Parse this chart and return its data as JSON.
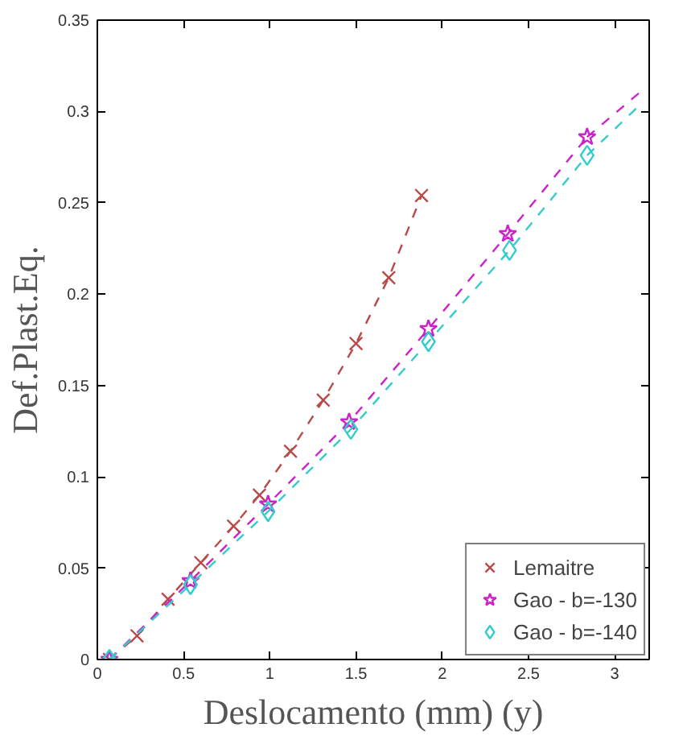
{
  "chart_data": {
    "type": "line",
    "xlabel": "Deslocamento (mm) (y)",
    "ylabel": "Def.Plast.Eq.",
    "xlim": [
      0,
      3.2
    ],
    "ylim": [
      0,
      0.35
    ],
    "xticks": [
      0,
      0.5,
      1,
      1.5,
      2,
      2.5,
      3
    ],
    "yticks": [
      0,
      0.05,
      0.1,
      0.15,
      0.2,
      0.25,
      0.3,
      0.35
    ],
    "grid": false,
    "legend": "bottom right",
    "line_style": "dashed",
    "series": [
      {
        "name": "Lemaitre",
        "color": "#b84a4a",
        "marker": "cross",
        "x": [
          0.07,
          0.23,
          0.41,
          0.6,
          0.79,
          0.94,
          1.12,
          1.31,
          1.5,
          1.69,
          1.88
        ],
        "values": [
          0,
          0.013,
          0.033,
          0.053,
          0.073,
          0.09,
          0.114,
          0.142,
          0.173,
          0.209,
          0.254
        ]
      },
      {
        "name": "Gao - b=-130",
        "color": "#cc22cc",
        "marker": "star",
        "x": [
          0.07,
          0.54,
          0.99,
          1.46,
          1.92,
          2.38,
          2.84
        ],
        "values": [
          0,
          0.043,
          0.085,
          0.13,
          0.181,
          0.233,
          0.286
        ]
      },
      {
        "name": "Gao - b=-140",
        "color": "#33cccc",
        "marker": "diamond",
        "x": [
          0.07,
          0.54,
          0.99,
          1.47,
          1.92,
          2.39,
          2.84
        ],
        "values": [
          0,
          0.041,
          0.081,
          0.126,
          0.174,
          0.224,
          0.276
        ]
      },
      {
        "type": "line",
        "color": "#cc22cc",
        "marker": "none",
        "x": [
          2.84,
          3.14
        ],
        "values": [
          0.286,
          0.31
        ]
      },
      {
        "type": "line",
        "color": "#33cccc",
        "marker": "none",
        "x": [
          2.84,
          3.14
        ],
        "values": [
          0.276,
          0.303
        ]
      }
    ]
  }
}
